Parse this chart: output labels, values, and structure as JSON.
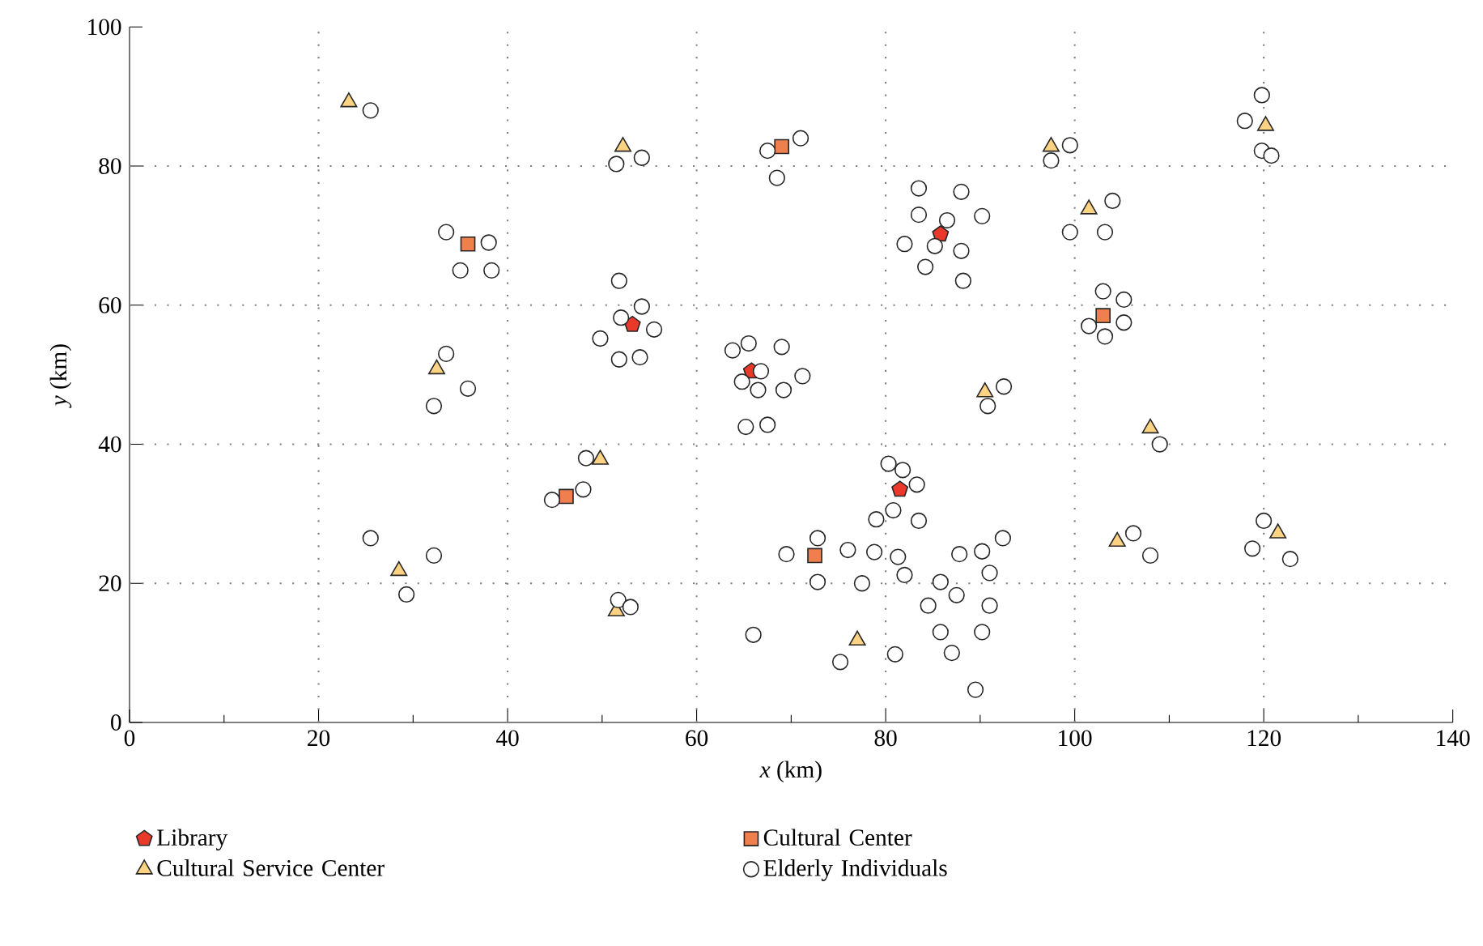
{
  "chart_data": {
    "type": "scatter",
    "xlabel": "*x* (km)",
    "ylabel": "*y* (km)",
    "xlim": [
      0,
      140
    ],
    "ylim": [
      0,
      100
    ],
    "xticks": [
      0,
      {
        "value": 10,
        "label": null
      },
      20,
      {
        "value": 30,
        "label": null
      },
      40,
      {
        "value": 50,
        "label": null
      },
      60,
      {
        "value": 70,
        "label": null
      },
      80,
      {
        "value": 90,
        "label": null
      },
      100,
      {
        "value": 110,
        "label": null
      },
      120,
      {
        "value": 130,
        "label": null
      },
      140
    ],
    "yticks": [
      0,
      20,
      40,
      60,
      80,
      100
    ],
    "grid": true,
    "legend": "bottom",
    "series": [
      {
        "name": "Library",
        "color": "#e8392a",
        "x": [
          53.2,
          65.8,
          85.8,
          81.5
        ],
        "values": [
          57.2,
          50.5,
          70.2,
          33.5
        ]
      },
      {
        "name": "Cultural Center",
        "color": "#f07f4e",
        "marker": "square",
        "x": [
          35.8,
          69,
          103,
          46.2,
          72.5
        ],
        "values": [
          68.8,
          82.8,
          58.5,
          32.5,
          24
        ]
      },
      {
        "name": "Cultural Service Center",
        "color": "#fcd283",
        "marker": "triangle",
        "x": [
          23.2,
          52.2,
          97.5,
          120.2,
          101.5,
          32.5,
          90.5,
          108,
          49.8,
          28.5,
          51.5,
          77,
          104.5,
          121.5
        ],
        "values": [
          89.2,
          82.8,
          82.8,
          85.8,
          73.8,
          50.8,
          47.5,
          42.3,
          37.8,
          21.8,
          16,
          11.8,
          26,
          27.2
        ]
      },
      {
        "name": "Elderly Individuals",
        "color": "#ffffff",
        "marker": "circle",
        "x": [
          25.5,
          33.5,
          38,
          35,
          38.3,
          51.5,
          54.2,
          67.5,
          68.5,
          71,
          51.8,
          52,
          54.2,
          49.8,
          55.5,
          51.8,
          54,
          33.5,
          32.2,
          35.8,
          63.8,
          65.5,
          69,
          64.8,
          66.5,
          66.8,
          69.2,
          71.2,
          65.2,
          67.5,
          83.5,
          88,
          83.5,
          86.5,
          90.2,
          82,
          85.2,
          88,
          84.2,
          88.2,
          97.5,
          99.5,
          104,
          99.5,
          103.2,
          119.8,
          118,
          119.8,
          120.8,
          103,
          105.2,
          101.5,
          105.2,
          103.2,
          90.8,
          92.5,
          109,
          48.3,
          48,
          44.7,
          25.5,
          32.2,
          29.3,
          51.7,
          53,
          80.3,
          81.8,
          83.3,
          80.8,
          79,
          72.8,
          76,
          78.8,
          81.3,
          69.5,
          72.8,
          77.5,
          82,
          83.5,
          87.8,
          90.2,
          92.4,
          91,
          85.8,
          87.5,
          84.5,
          91,
          85.8,
          90.2,
          87,
          81,
          75.2,
          66,
          89.5,
          106.2,
          108,
          120,
          118.8,
          122.8
        ],
        "values": [
          88,
          70.5,
          69,
          65,
          65,
          80.3,
          81.2,
          82.2,
          78.3,
          84,
          63.5,
          58.2,
          59.8,
          55.2,
          56.5,
          52.2,
          52.5,
          53,
          45.5,
          48,
          53.5,
          54.5,
          54,
          49,
          47.8,
          50.5,
          47.8,
          49.8,
          42.5,
          42.8,
          76.8,
          76.3,
          73,
          72.2,
          72.8,
          68.8,
          68.5,
          67.8,
          65.5,
          63.5,
          80.8,
          83,
          75,
          70.5,
          70.5,
          90.2,
          86.5,
          82.2,
          81.5,
          62,
          60.8,
          57,
          57.5,
          55.5,
          45.5,
          48.3,
          40,
          38,
          33.5,
          32,
          26.5,
          24,
          18.4,
          17.6,
          16.6,
          37.2,
          36.3,
          34.2,
          30.5,
          29.2,
          26.5,
          24.8,
          24.5,
          23.8,
          24.2,
          20.2,
          20,
          21.2,
          29,
          24.2,
          24.6,
          26.5,
          21.5,
          20.2,
          18.3,
          16.8,
          16.8,
          13,
          13,
          10,
          9.8,
          8.7,
          12.6,
          4.7,
          27.2,
          24,
          29,
          25,
          23.5
        ]
      }
    ]
  }
}
